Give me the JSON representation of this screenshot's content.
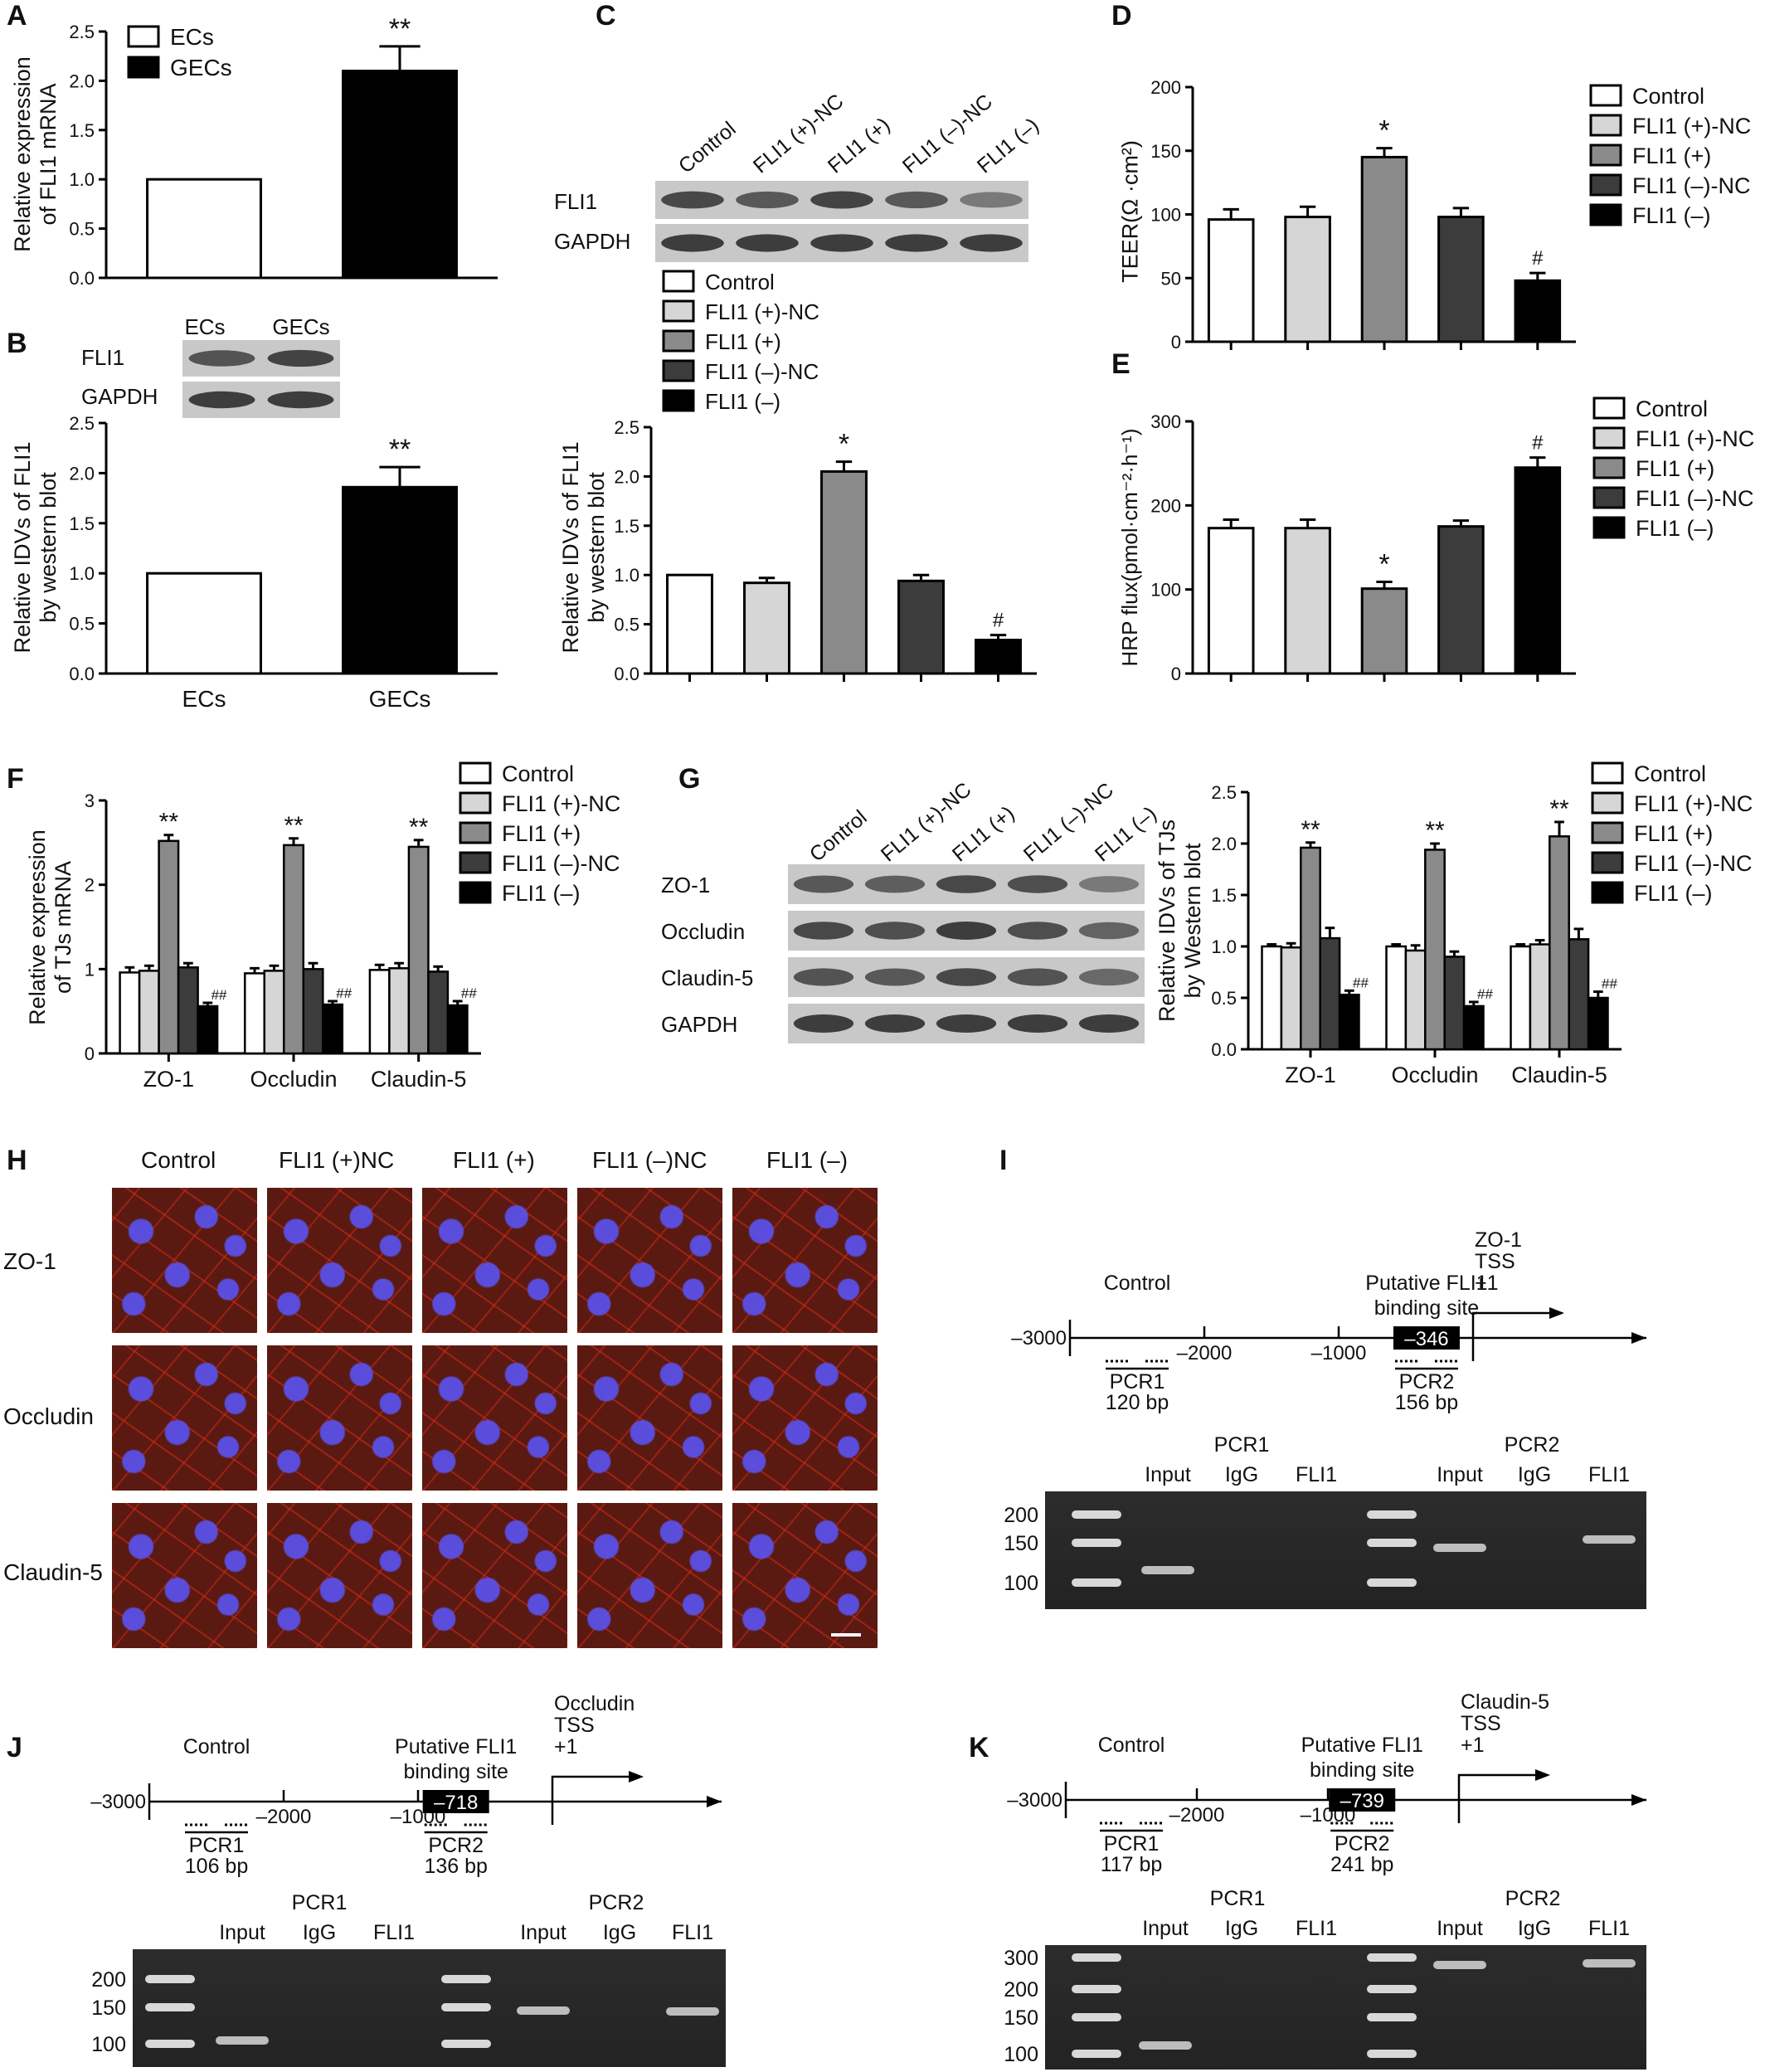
{
  "panel_letters": {
    "A": "A",
    "B": "B",
    "C": "C",
    "D": "D",
    "E": "E",
    "F": "F",
    "G": "G",
    "H": "H",
    "I": "I",
    "J": "J",
    "K": "K"
  },
  "colors": {
    "white": "#ffffff",
    "light_gray": "#d6d6d6",
    "mid_gray": "#8a8a8a",
    "dark_gray": "#3c3c3c",
    "black": "#000000"
  },
  "chart_data": [
    {
      "panel": "A",
      "type": "bar",
      "categories": [
        "ECs",
        "GECs"
      ],
      "values": [
        1.0,
        2.1
      ],
      "errors": [
        0,
        0.25
      ],
      "annotations": [
        "",
        "**"
      ],
      "ylabel": "Relative expression of FLI1 mRNA",
      "ylabel_lines": [
        "Relative expression",
        "of FLI1 mRNA"
      ],
      "ylim": [
        0,
        2.5
      ],
      "yticks": [
        "0.0",
        "0.5",
        "1.0",
        "1.5",
        "2.0",
        "2.5"
      ],
      "legend": [
        "ECs",
        "GECs"
      ]
    },
    {
      "panel": "B",
      "type": "bar",
      "categories": [
        "ECs",
        "GECs"
      ],
      "values": [
        1.0,
        1.86
      ],
      "errors": [
        0,
        0.2
      ],
      "annotations": [
        "",
        "**"
      ],
      "ylabel": "Relative IDVs of FLI1 by western blot",
      "ylabel_lines": [
        "Relative IDVs of FLI1",
        "by western blot"
      ],
      "ylim": [
        0,
        2.5
      ],
      "yticks": [
        "0.0",
        "0.5",
        "1.0",
        "1.5",
        "2.0",
        "2.5"
      ],
      "blot_lanes": [
        "ECs",
        "GECs"
      ],
      "blot_rows": [
        "FLI1",
        "GAPDH"
      ]
    },
    {
      "panel": "C",
      "type": "bar",
      "categories": [
        "Control",
        "FLI1 (+)-NC",
        "FLI1 (+)",
        "FLI1 (–)-NC",
        "FLI1 (–)"
      ],
      "values": [
        1.0,
        0.92,
        2.05,
        0.94,
        0.34
      ],
      "errors": [
        0,
        0.05,
        0.1,
        0.06,
        0.05
      ],
      "annotations": [
        "",
        "",
        "*",
        "",
        "#"
      ],
      "ylabel": "Relative IDVs of FLI1 by western blot",
      "ylabel_lines": [
        "Relative IDVs of FLI1",
        "by western blot"
      ],
      "ylim": [
        0,
        2.5
      ],
      "yticks": [
        "0.0",
        "0.5",
        "1.0",
        "1.5",
        "2.0",
        "2.5"
      ],
      "legend": [
        "Control",
        "FLI1 (+)-NC",
        "FLI1 (+)",
        "FLI1 (–)-NC",
        "FLI1 (–)"
      ],
      "blot_lanes": [
        "Control",
        "FLI1 (+)-NC",
        "FLI1 (+)",
        "FLI1 (–)-NC",
        "FLI1 (–)"
      ],
      "blot_rows": [
        "FLI1",
        "GAPDH"
      ]
    },
    {
      "panel": "D",
      "type": "bar",
      "categories": [
        "Control",
        "FLI1 (+)-NC",
        "FLI1 (+)",
        "FLI1 (–)-NC",
        "FLI1 (–)"
      ],
      "values": [
        96,
        98,
        145,
        98,
        48
      ],
      "errors": [
        8,
        8,
        7,
        7,
        6
      ],
      "annotations": [
        "",
        "",
        "*",
        "",
        "#"
      ],
      "ylabel": "TEER(Ω ·cm²)",
      "ylim": [
        0,
        200
      ],
      "yticks": [
        "0",
        "50",
        "100",
        "150",
        "200"
      ],
      "legend": [
        "Control",
        "FLI1 (+)-NC",
        "FLI1 (+)",
        "FLI1 (–)-NC",
        "FLI1 (–)"
      ]
    },
    {
      "panel": "E",
      "type": "bar",
      "categories": [
        "Control",
        "FLI1 (+)-NC",
        "FLI1 (+)",
        "FLI1 (–)-NC",
        "FLI1 (–)"
      ],
      "values": [
        173,
        173,
        101,
        175,
        245
      ],
      "errors": [
        10,
        10,
        8,
        7,
        12
      ],
      "annotations": [
        "",
        "",
        "*",
        "",
        "#"
      ],
      "ylabel": "HRP flux(pmol·cm⁻²·h⁻¹)",
      "ylim": [
        0,
        300
      ],
      "yticks": [
        "0",
        "100",
        "200",
        "300"
      ],
      "legend": [
        "Control",
        "FLI1 (+)-NC",
        "FLI1 (+)",
        "FLI1 (–)-NC",
        "FLI1 (–)"
      ]
    },
    {
      "panel": "F",
      "type": "bar",
      "categories": [
        "ZO-1",
        "Occludin",
        "Claudin-5"
      ],
      "series": [
        {
          "name": "Control",
          "values": [
            0.96,
            0.95,
            0.99
          ],
          "errors": [
            0.06,
            0.06,
            0.06
          ]
        },
        {
          "name": "FLI1 (+)-NC",
          "values": [
            0.98,
            0.98,
            1.01
          ],
          "errors": [
            0.06,
            0.06,
            0.06
          ]
        },
        {
          "name": "FLI1 (+)",
          "values": [
            2.52,
            2.47,
            2.45
          ],
          "errors": [
            0.07,
            0.08,
            0.08
          ]
        },
        {
          "name": "FLI1 (–)-NC",
          "values": [
            1.02,
            1.0,
            0.97
          ],
          "errors": [
            0.05,
            0.07,
            0.06
          ]
        },
        {
          "name": "FLI1 (–)",
          "values": [
            0.56,
            0.58,
            0.57
          ],
          "errors": [
            0.04,
            0.04,
            0.05
          ]
        }
      ],
      "annotations": {
        "FLI1 (+)": "**",
        "FLI1 (–)": "##"
      },
      "ylabel": "Relative expression of TJs mRNA",
      "ylabel_lines": [
        "Relative expression",
        "of TJs mRNA"
      ],
      "ylim": [
        0,
        3
      ],
      "yticks": [
        "0",
        "1",
        "2",
        "3"
      ],
      "legend": [
        "Control",
        "FLI1 (+)-NC",
        "FLI1 (+)",
        "FLI1 (–)-NC",
        "FLI1 (–)"
      ]
    },
    {
      "panel": "G",
      "type": "bar",
      "categories": [
        "ZO-1",
        "Occludin",
        "Claudin-5"
      ],
      "series": [
        {
          "name": "Control",
          "values": [
            1.0,
            1.0,
            1.0
          ],
          "errors": [
            0.02,
            0.02,
            0.02
          ]
        },
        {
          "name": "FLI1 (+)-NC",
          "values": [
            0.99,
            0.96,
            1.02
          ],
          "errors": [
            0.04,
            0.05,
            0.04
          ]
        },
        {
          "name": "FLI1 (+)",
          "values": [
            1.96,
            1.94,
            2.07
          ],
          "errors": [
            0.05,
            0.06,
            0.14
          ]
        },
        {
          "name": "FLI1 (–)-NC",
          "values": [
            1.08,
            0.9,
            1.07
          ],
          "errors": [
            0.1,
            0.05,
            0.1
          ]
        },
        {
          "name": "FLI1 (–)",
          "values": [
            0.53,
            0.42,
            0.5
          ],
          "errors": [
            0.04,
            0.04,
            0.06
          ]
        }
      ],
      "annotations": {
        "FLI1 (+)": "**",
        "FLI1 (–)": "##"
      },
      "ylabel": "Relative IDVs of TJs by Western blot",
      "ylabel_lines": [
        "Relative IDVs of TJs",
        "by Western blot"
      ],
      "ylim": [
        0,
        2.5
      ],
      "yticks": [
        "0.0",
        "0.5",
        "1.0",
        "1.5",
        "2.0",
        "2.5"
      ],
      "legend": [
        "Control",
        "FLI1 (+)-NC",
        "FLI1 (+)",
        "FLI1 (–)-NC",
        "FLI1 (–)"
      ],
      "blot_lanes": [
        "Control",
        "FLI1 (+)-NC",
        "FLI1 (+)",
        "FLI1 (–)-NC",
        "FLI1 (–)"
      ],
      "blot_rows": [
        "ZO-1",
        "Occludin",
        "Claudin-5",
        "GAPDH"
      ]
    }
  ],
  "panel_h": {
    "columns": [
      "Control",
      "FLI1 (+)NC",
      "FLI1 (+)",
      "FLI1 (–)NC",
      "FLI1 (–)"
    ],
    "rows": [
      "ZO-1",
      "Occludin",
      "Claudin-5"
    ]
  },
  "promoter_panels": [
    {
      "panel": "I",
      "gene_tss": [
        "ZO-1",
        "TSS",
        "+1"
      ],
      "control": "Control",
      "site_label": [
        "Putative FLI1",
        "binding site"
      ],
      "site_pos": "–346",
      "ticks": [
        "–3000",
        "–2000",
        "–1000"
      ],
      "pcr1": [
        "PCR1",
        "120 bp"
      ],
      "pcr2": [
        "PCR2",
        "156 bp"
      ],
      "gel_groups": [
        "PCR1",
        "PCR2"
      ],
      "gel_lanes": [
        "Input",
        "IgG",
        "FLI1",
        "Input",
        "IgG",
        "FLI1"
      ],
      "markers": [
        "200",
        "150",
        "100"
      ]
    },
    {
      "panel": "J",
      "gene_tss": [
        "Occludin",
        "TSS",
        "+1"
      ],
      "control": "Control",
      "site_label": [
        "Putative FLI1",
        "binding site"
      ],
      "site_pos": "–718",
      "ticks": [
        "–3000",
        "–2000",
        "–1000"
      ],
      "pcr1": [
        "PCR1",
        "106 bp"
      ],
      "pcr2": [
        "PCR2",
        "136 bp"
      ],
      "gel_groups": [
        "PCR1",
        "PCR2"
      ],
      "gel_lanes": [
        "Input",
        "IgG",
        "FLI1",
        "Input",
        "IgG",
        "FLI1"
      ],
      "markers": [
        "200",
        "150",
        "100"
      ]
    },
    {
      "panel": "K",
      "gene_tss": [
        "Claudin-5",
        "TSS",
        "+1"
      ],
      "control": "Control",
      "site_label": [
        "Putative FLI1",
        "binding site"
      ],
      "site_pos": "–739",
      "ticks": [
        "–3000",
        "–2000",
        "–1000"
      ],
      "pcr1": [
        "PCR1",
        "117 bp"
      ],
      "pcr2": [
        "PCR2",
        "241 bp"
      ],
      "gel_groups": [
        "PCR1",
        "PCR2"
      ],
      "gel_lanes": [
        "Input",
        "IgG",
        "FLI1",
        "Input",
        "IgG",
        "FLI1"
      ],
      "markers": [
        "300",
        "200",
        "150",
        "100"
      ]
    }
  ]
}
